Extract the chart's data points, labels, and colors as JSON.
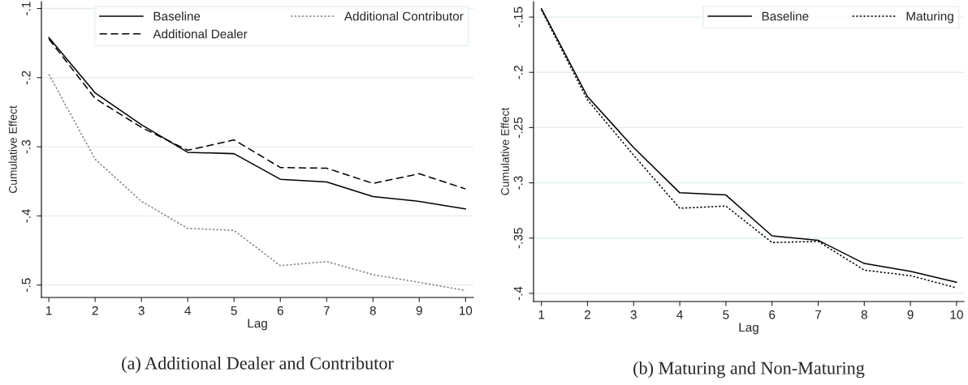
{
  "chart_data": [
    {
      "type": "line",
      "title": "(a) Additional Dealer and Contributor",
      "xlabel": "Lag",
      "ylabel": "Cumulative Effect",
      "x": [
        1,
        2,
        3,
        4,
        5,
        6,
        7,
        8,
        9,
        10
      ],
      "series": [
        {
          "name": "Baseline",
          "color": "#000000",
          "line_style": "solid",
          "values": [
            -0.142,
            -0.222,
            -0.268,
            -0.308,
            -0.31,
            -0.347,
            -0.351,
            -0.372,
            -0.379,
            -0.39
          ]
        },
        {
          "name": "Additional Dealer",
          "color": "#000000",
          "line_style": "dashed",
          "values": [
            -0.144,
            -0.23,
            -0.272,
            -0.305,
            -0.29,
            -0.33,
            -0.331,
            -0.353,
            -0.339,
            -0.361
          ]
        },
        {
          "name": "Additional Contributor",
          "color": "#808080",
          "line_style": "dotted",
          "values": [
            -0.195,
            -0.318,
            -0.379,
            -0.418,
            -0.421,
            -0.472,
            -0.466,
            -0.485,
            -0.496,
            -0.508
          ]
        }
      ],
      "xlim": [
        0.84,
        10.17
      ],
      "ylim": [
        -0.518,
        -0.09
      ],
      "xticks": [
        1,
        2,
        3,
        4,
        5,
        6,
        7,
        8,
        9,
        10
      ],
      "yticks": [
        {
          "value": -0.5,
          "label": "-.5"
        },
        {
          "value": -0.4,
          "label": "-.4"
        },
        {
          "value": -0.3,
          "label": "-.3"
        },
        {
          "value": -0.2,
          "label": "-.2"
        },
        {
          "value": -0.1,
          "label": "-.1"
        }
      ],
      "grid": "y",
      "legend": "top right",
      "marker": "none"
    },
    {
      "type": "line",
      "title": "(b) Maturing and Non-Maturing",
      "xlabel": "Lag",
      "ylabel": "Cumulative Effect",
      "x": [
        1,
        2,
        3,
        4,
        5,
        6,
        7,
        8,
        9,
        10
      ],
      "series": [
        {
          "name": "Baseline",
          "color": "#000000",
          "line_style": "solid",
          "values": [
            -0.1424,
            -0.222,
            -0.268,
            -0.309,
            -0.311,
            -0.348,
            -0.352,
            -0.373,
            -0.38,
            -0.39
          ]
        },
        {
          "name": "Maturing",
          "color": "#000000",
          "line_style": "dotted",
          "values": [
            -0.1435,
            -0.225,
            -0.275,
            -0.323,
            -0.321,
            -0.354,
            -0.353,
            -0.379,
            -0.384,
            -0.395
          ]
        }
      ],
      "xlim": [
        0.83,
        10.16
      ],
      "ylim": [
        -0.4074,
        -0.136
      ],
      "xticks": [
        1,
        2,
        3,
        4,
        5,
        6,
        7,
        8,
        9,
        10
      ],
      "yticks": [
        {
          "value": -0.4,
          "label": "-.4"
        },
        {
          "value": -0.35,
          "label": "-.35"
        },
        {
          "value": -0.3,
          "label": "-.3"
        },
        {
          "value": -0.25,
          "label": "-.25"
        },
        {
          "value": -0.2,
          "label": "-.2"
        },
        {
          "value": -0.15,
          "label": "-.15"
        }
      ],
      "grid": "y",
      "legend": "top right",
      "marker": "none"
    }
  ]
}
